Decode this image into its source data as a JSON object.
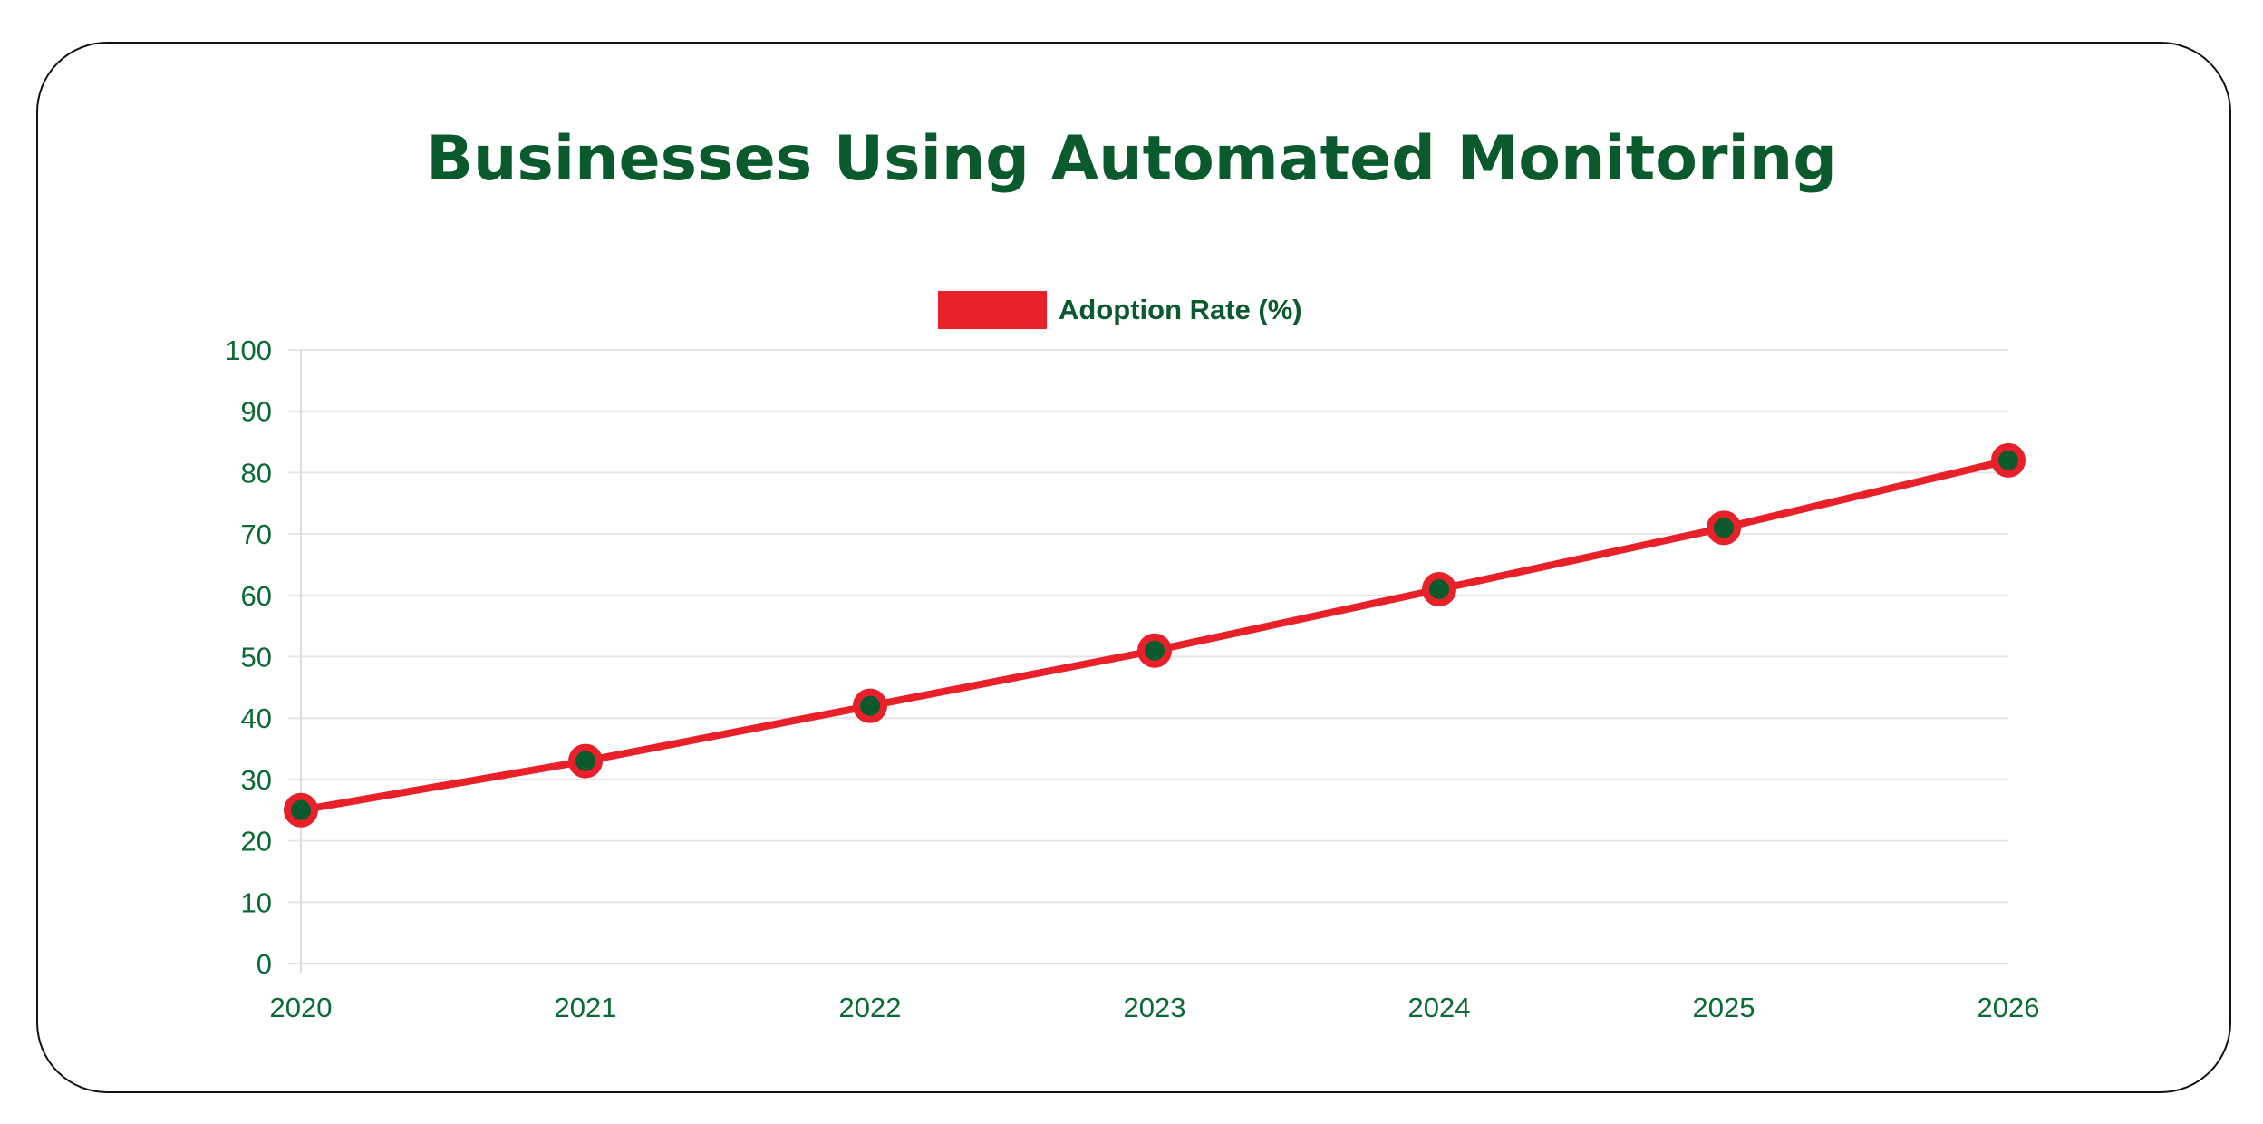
{
  "chart_data": {
    "type": "line",
    "title": "Businesses Using Automated Monitoring",
    "categories": [
      "2020",
      "2021",
      "2022",
      "2023",
      "2024",
      "2025",
      "2026"
    ],
    "series": [
      {
        "name": "Adoption Rate (%)",
        "values": [
          25,
          33,
          42,
          51,
          61,
          71,
          82
        ]
      }
    ],
    "ylim": [
      0,
      100
    ],
    "yticks": [
      0,
      10,
      20,
      30,
      40,
      50,
      60,
      70,
      80,
      90,
      100
    ],
    "xlabel": "",
    "ylabel": "",
    "grid": true,
    "legend_position": "top-center",
    "colors": {
      "line": "#e8202a",
      "marker_fill": "#0b5a2e",
      "text": "#0b6a35",
      "grid": "#e6e6e6"
    }
  }
}
